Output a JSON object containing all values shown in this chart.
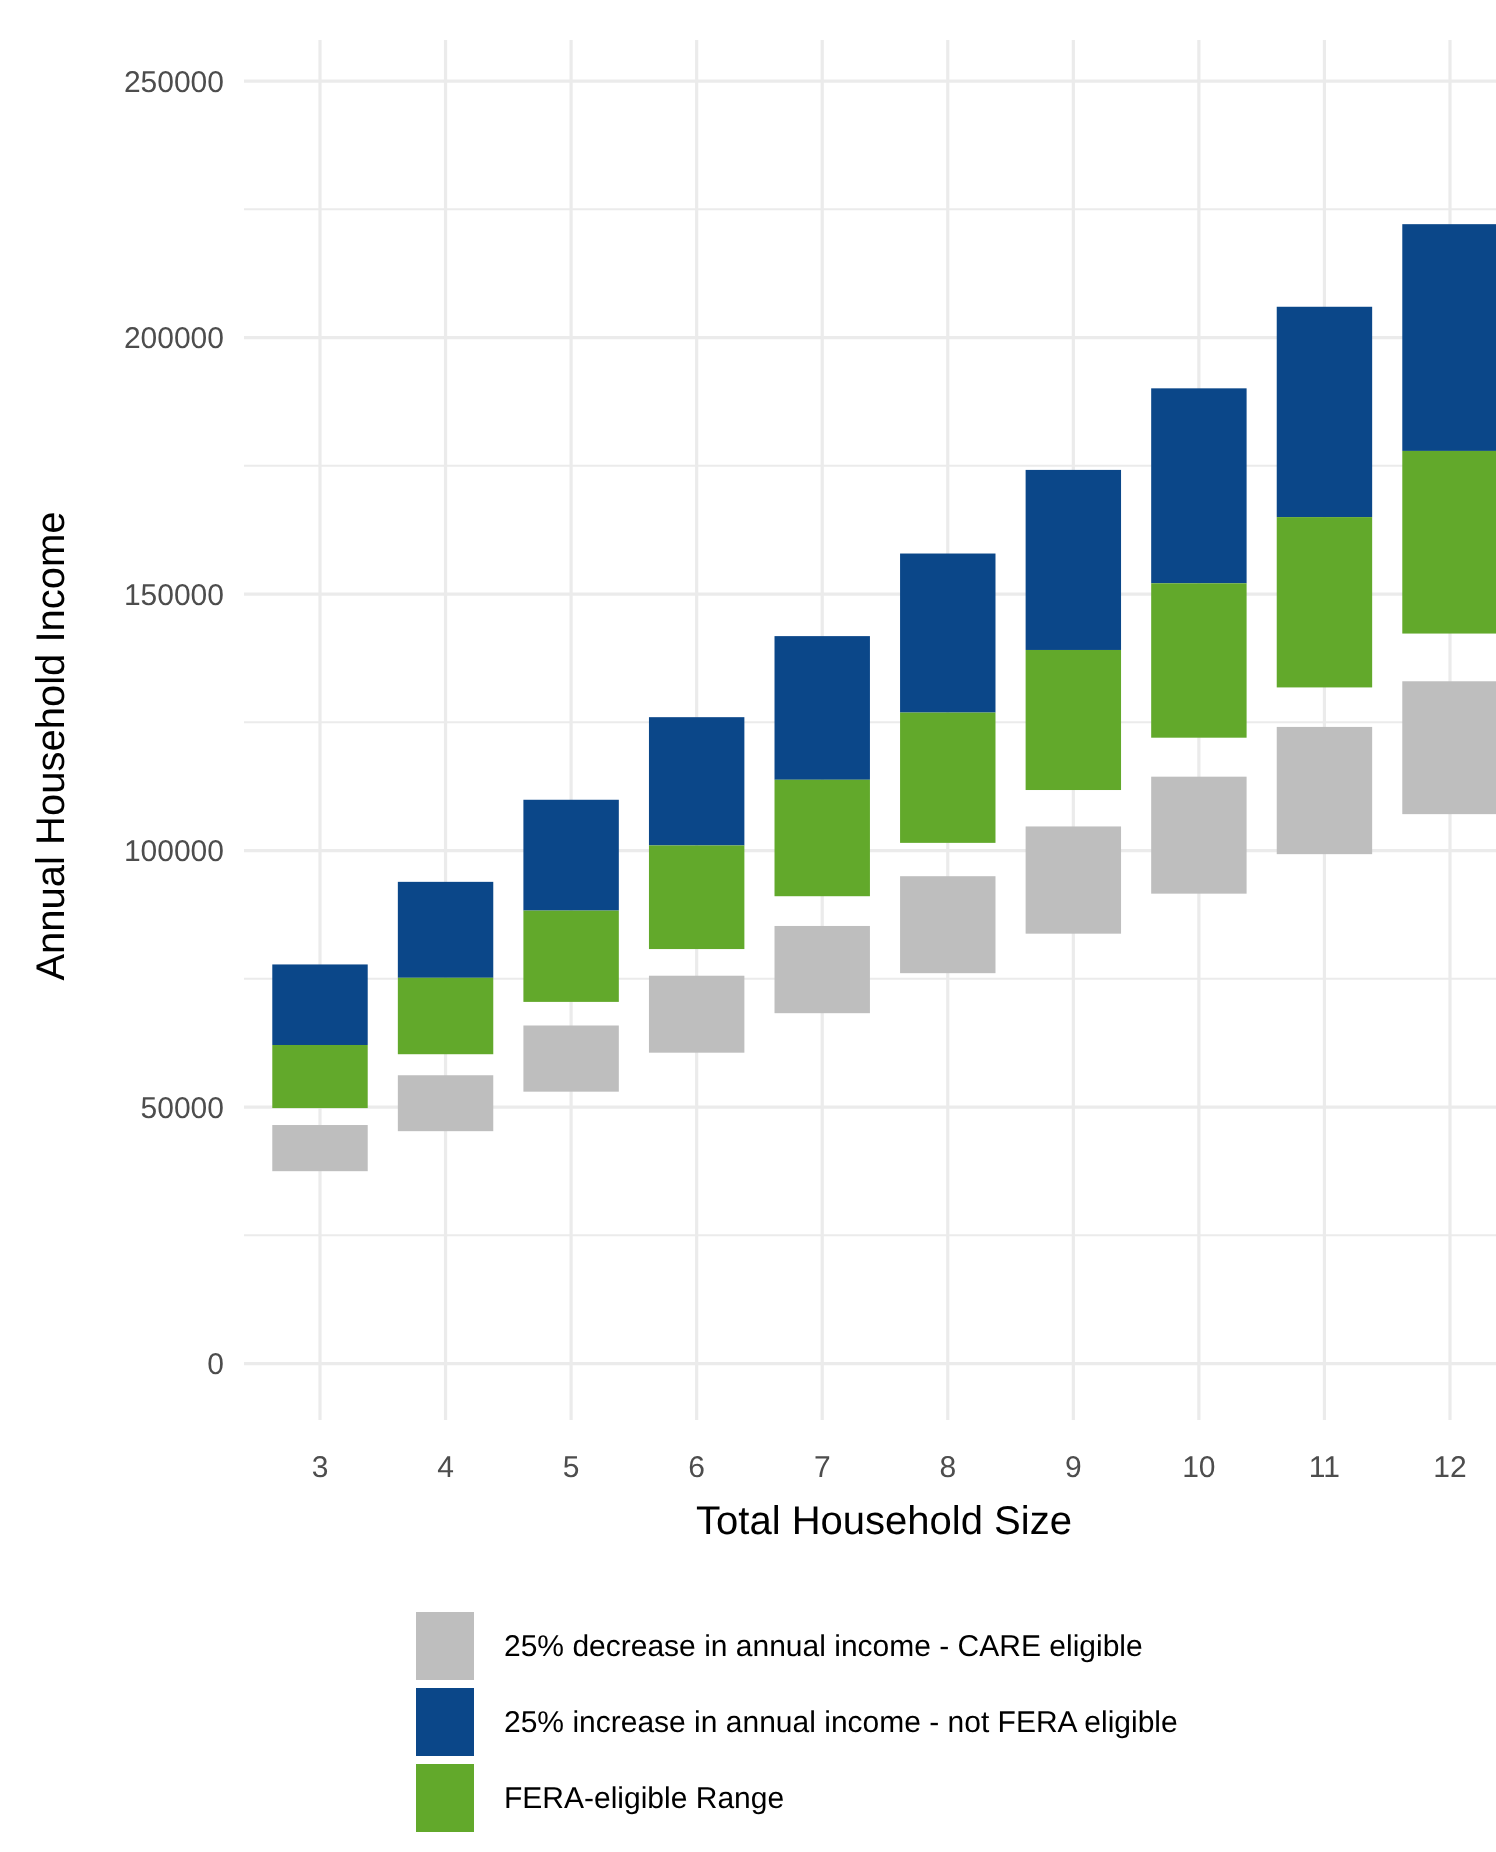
{
  "chart_data": {
    "type": "bar",
    "categories": [
      "3",
      "4",
      "5",
      "6",
      "7",
      "8",
      "9",
      "10",
      "11",
      "12"
    ],
    "xlabel": "Total Household Size",
    "ylabel": "Annual Household Income",
    "ylim": [
      -11000,
      258000
    ],
    "yticks": [
      0,
      {
        "value": 25000,
        "label": null
      },
      50000,
      {
        "value": 75000,
        "label": null
      },
      100000,
      {
        "value": 125000,
        "label": null
      },
      150000,
      {
        "value": 175000,
        "label": null
      },
      200000,
      {
        "value": 225000,
        "label": null
      },
      250000
    ],
    "grid": true,
    "legend": "bottom",
    "series": [
      {
        "name": "25% decrease in annual income - CARE eligible",
        "color": "#bebebe",
        "base": [
          37500,
          45300,
          53000,
          60600,
          68300,
          76100,
          83800,
          91600,
          99300,
          107100
        ],
        "values": [
          9000,
          10900,
          12900,
          15000,
          17000,
          18900,
          20900,
          22800,
          24800,
          25900
        ]
      },
      {
        "name": "25% increase in annual income - not FERA eligible",
        "color": "#0b4789",
        "base": [
          62100,
          75200,
          88300,
          101000,
          113800,
          126900,
          139100,
          152100,
          165000,
          177900
        ],
        "values": [
          15700,
          18700,
          21600,
          25000,
          28000,
          31000,
          35100,
          38000,
          41000,
          44200
        ]
      },
      {
        "name": "FERA-eligible Range",
        "color": "#62a92b",
        "base": [
          49800,
          60300,
          70500,
          80800,
          91100,
          101500,
          111800,
          122000,
          131800,
          142300
        ],
        "values": [
          12300,
          14900,
          17800,
          20200,
          22700,
          25400,
          27300,
          30100,
          33200,
          35600
        ]
      }
    ]
  }
}
